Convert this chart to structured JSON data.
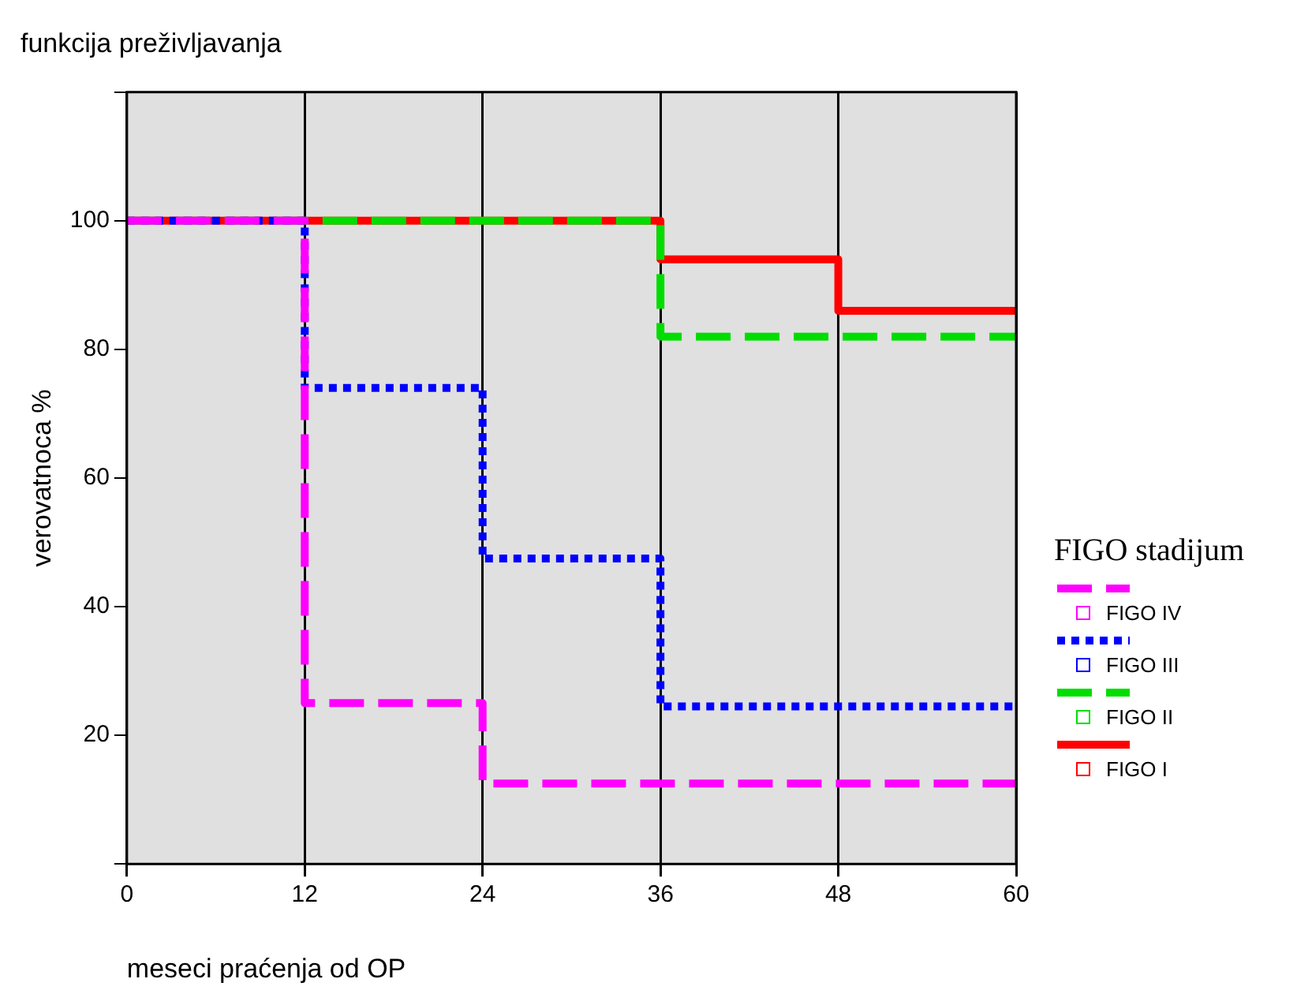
{
  "chart_data": {
    "type": "step",
    "title": "funkcija preživljavanja",
    "xlabel": "meseci praćenja od OP",
    "ylabel": "verovatnoca %",
    "legend_title": "FIGO stadijum",
    "xlim": [
      0,
      60
    ],
    "xticks": [
      0,
      12,
      24,
      36,
      48,
      60
    ],
    "ylim": [
      0,
      120
    ],
    "yticks": [
      {
        "value": 0,
        "label": null
      },
      20,
      40,
      60,
      80,
      100,
      {
        "value": 120,
        "label": null
      }
    ],
    "grid": "x",
    "legend": "right",
    "series": [
      {
        "name": "FIGO IV",
        "color": "#ff00ff",
        "line_style": "dashed",
        "x": [
          0,
          12,
          24,
          60
        ],
        "values": [
          100,
          25,
          12.5,
          12.5
        ]
      },
      {
        "name": "FIGO III",
        "color": "#0000ff",
        "line_style": "dotted",
        "x": [
          0,
          12,
          24,
          36,
          60
        ],
        "values": [
          100,
          74,
          47.5,
          24.5,
          24.5
        ]
      },
      {
        "name": "FIGO II",
        "color": "#00dd00",
        "line_style": "dashed",
        "x": [
          0,
          36,
          60
        ],
        "values": [
          100,
          82,
          82
        ]
      },
      {
        "name": "FIGO I",
        "color": "#ff0000",
        "line_style": "solid",
        "x": [
          0,
          36,
          48,
          60
        ],
        "values": [
          100,
          94,
          86,
          86
        ]
      }
    ]
  }
}
